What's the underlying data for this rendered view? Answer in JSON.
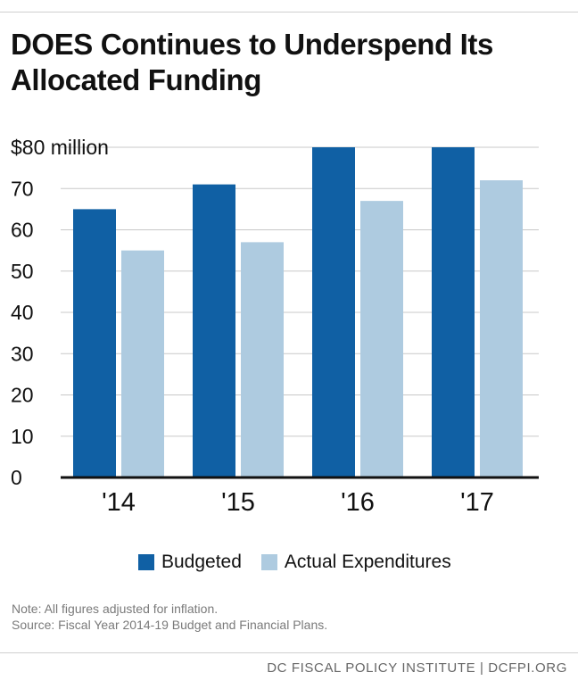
{
  "title": "DOES Continues to Underspend Its Allocated Funding",
  "legend": {
    "budgeted": "Budgeted",
    "actual": "Actual Expenditures"
  },
  "notes": {
    "note": "Note: All figures adjusted for inflation.",
    "source": "Source: Fiscal Year 2014-19 Budget and Financial Plans."
  },
  "footer": "DC FISCAL POLICY INSTITUTE | DCFPI.ORG",
  "colors": {
    "budgeted": "#1060a4",
    "actual": "#aecbe0",
    "grid": "#c8c8c8",
    "axis": "#111111"
  },
  "chart_data": {
    "type": "bar",
    "title": "DOES Continues to Underspend Its Allocated Funding",
    "categories": [
      "'14",
      "'15",
      "'16",
      "'17"
    ],
    "series": [
      {
        "name": "Budgeted",
        "values": [
          65,
          71,
          80,
          80
        ]
      },
      {
        "name": "Actual Expenditures",
        "values": [
          55,
          57,
          67,
          72
        ]
      }
    ],
    "ylim": [
      0,
      80
    ],
    "yticks": [
      0,
      10,
      20,
      30,
      40,
      50,
      60,
      70,
      80
    ],
    "ytick_labels": [
      "0",
      "10",
      "20",
      "30",
      "40",
      "50",
      "60",
      "70",
      "$80 million"
    ],
    "grid": true,
    "legend_position": "bottom"
  }
}
